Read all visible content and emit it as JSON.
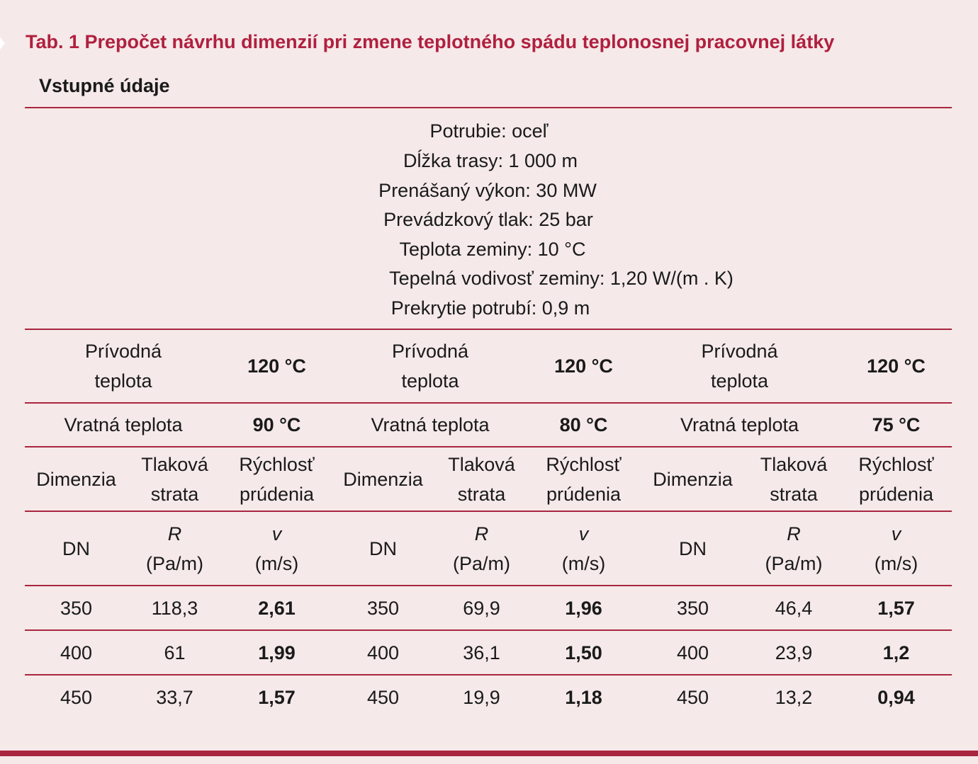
{
  "title": "Tab. 1 Prepočet návrhu dimenzií pri zmene teplotného spádu teplonosnej pracovnej látky",
  "subtitle": "Vstupné údaje",
  "inputs": [
    "Potrubie: oceľ",
    "Dĺžka trasy: 1 000 m",
    "Prenášaný výkon: 30 MW",
    "Prevádzkový tlak: 25 bar",
    "Teplota zeminy: 10 °C",
    "Tepelná vodivosť zeminy: 1,20 W/(m . K)",
    "Prekrytie potrubí: 0,9 m"
  ],
  "supply_label": [
    "Prívodná",
    "teplota"
  ],
  "return_label": "Vratná teplota",
  "col_headers": {
    "dimension": "Dimenzia",
    "pressure_loss": [
      "Tlaková",
      "strata"
    ],
    "velocity": [
      "Rýchlosť",
      "prúdenia"
    ]
  },
  "units": {
    "dn": "DN",
    "r_symbol": "R",
    "r_unit": "(Pa/m)",
    "v_symbol": "v",
    "v_unit": "(m/s)"
  },
  "groups": [
    {
      "supply_temp": "120 °C",
      "return_temp": "90 °C",
      "rows": [
        {
          "dn": "350",
          "r": "118,3",
          "v": "2,61"
        },
        {
          "dn": "400",
          "r": "61",
          "v": "1,99"
        },
        {
          "dn": "450",
          "r": "33,7",
          "v": "1,57"
        }
      ]
    },
    {
      "supply_temp": "120 °C",
      "return_temp": "80 °C",
      "rows": [
        {
          "dn": "350",
          "r": "69,9",
          "v": "1,96"
        },
        {
          "dn": "400",
          "r": "36,1",
          "v": "1,50"
        },
        {
          "dn": "450",
          "r": "19,9",
          "v": "1,18"
        }
      ]
    },
    {
      "supply_temp": "120 °C",
      "return_temp": "75 °C",
      "rows": [
        {
          "dn": "350",
          "r": "46,4",
          "v": "1,57"
        },
        {
          "dn": "400",
          "r": "23,9",
          "v": "1,2"
        },
        {
          "dn": "450",
          "r": "13,2",
          "v": "0,94"
        }
      ]
    }
  ]
}
